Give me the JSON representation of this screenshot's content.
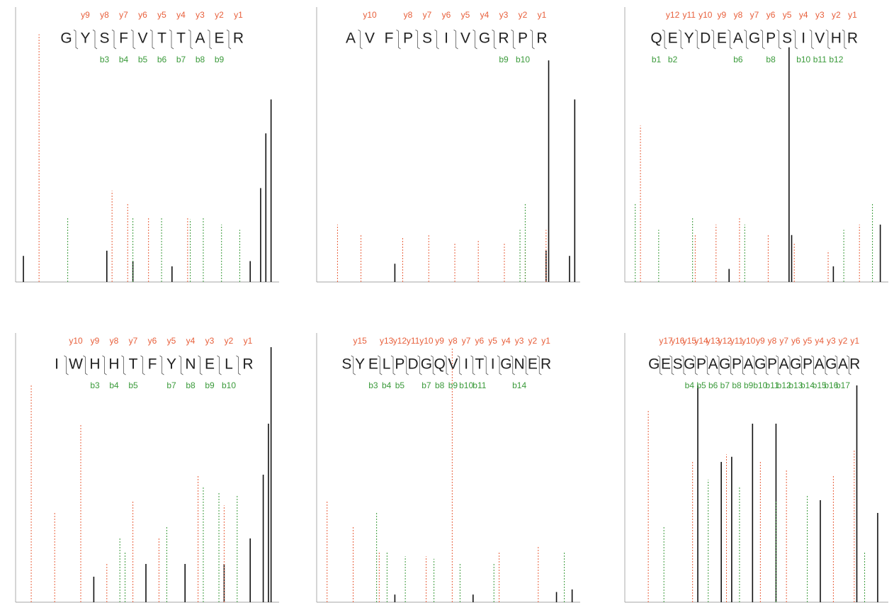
{
  "chart_data": [
    {
      "type": "spectrum",
      "peptide": [
        "G",
        "Y",
        "S",
        "F",
        "V",
        "T",
        "T",
        "A",
        "E",
        "R"
      ],
      "y_ions": [
        "y9",
        "y8",
        "y7",
        "y6",
        "y5",
        "y4",
        "y3",
        "y2",
        "y1"
      ],
      "b_ions": [
        "b3",
        "b4",
        "b5",
        "b6",
        "b7",
        "b8",
        "b9"
      ],
      "xlim": [
        0,
        100
      ],
      "ylim": [
        0,
        100
      ],
      "colors": {
        "y": "#e8603c",
        "b": "#3a9a3a",
        "other": "#111111"
      },
      "y_peaks": {
        "x": [
          9,
          37,
          43,
          51,
          66
        ],
        "values": [
          95,
          35,
          30,
          25,
          25
        ]
      },
      "b_peaks": {
        "x": [
          20,
          45,
          56,
          67,
          72,
          79,
          86
        ],
        "values": [
          25,
          25,
          25,
          24,
          25,
          22,
          20
        ]
      },
      "other_peaks": {
        "x": [
          3,
          35,
          45,
          60,
          90,
          94,
          96,
          98
        ],
        "values": [
          10,
          12,
          8,
          6,
          8,
          36,
          57,
          70
        ]
      }
    },
    {
      "type": "spectrum",
      "peptide": [
        "A",
        "V",
        "F",
        "P",
        "S",
        "I",
        "V",
        "G",
        "R",
        "P",
        "R"
      ],
      "y_ions": [
        "y10",
        "y8",
        "y7",
        "y6",
        "y5",
        "y4",
        "y3",
        "y2",
        "y1"
      ],
      "b_ions": [
        "b9",
        "b10"
      ],
      "xlim": [
        0,
        100
      ],
      "ylim": [
        0,
        100
      ],
      "colors": {
        "y": "#e8603c",
        "b": "#3a9a3a",
        "other": "#111111"
      },
      "y_peaks": {
        "x": [
          8,
          17,
          33,
          43,
          53,
          62,
          72,
          80,
          88
        ],
        "values": [
          22,
          18,
          17,
          18,
          15,
          16,
          15,
          14,
          20
        ]
      },
      "b_peaks": {
        "x": [
          78,
          80
        ],
        "values": [
          20,
          30
        ]
      },
      "other_peaks": {
        "x": [
          30,
          88,
          89,
          97,
          99
        ],
        "values": [
          7,
          12,
          85,
          10,
          70
        ]
      }
    },
    {
      "type": "spectrum",
      "peptide": [
        "Q",
        "E",
        "Y",
        "D",
        "E",
        "A",
        "G",
        "P",
        "S",
        "I",
        "V",
        "H",
        "R"
      ],
      "y_ions": [
        "y12",
        "y11",
        "y10",
        "y9",
        "y8",
        "y7",
        "y6",
        "y5",
        "y4",
        "y3",
        "y2",
        "y1"
      ],
      "b_ions": [
        "b1",
        "b2",
        "b6",
        "b8",
        "b10",
        "b11",
        "b12"
      ],
      "xlim": [
        0,
        100
      ],
      "ylim": [
        0,
        100
      ],
      "colors": {
        "y": "#e8603c",
        "b": "#3a9a3a",
        "other": "#111111"
      },
      "y_peaks": {
        "x": [
          6,
          27,
          35,
          44,
          55,
          65,
          78,
          90
        ],
        "values": [
          60,
          18,
          22,
          25,
          18,
          15,
          12,
          22
        ]
      },
      "b_peaks": {
        "x": [
          4,
          13,
          26,
          46,
          84,
          95
        ],
        "values": [
          30,
          20,
          25,
          22,
          20,
          30
        ]
      },
      "other_peaks": {
        "x": [
          40,
          63,
          64,
          80,
          98
        ],
        "values": [
          5,
          90,
          18,
          6,
          22
        ]
      }
    },
    {
      "type": "spectrum",
      "peptide": [
        "I",
        "W",
        "H",
        "H",
        "T",
        "F",
        "Y",
        "N",
        "E",
        "L",
        "R"
      ],
      "y_ions": [
        "y10",
        "y9",
        "y8",
        "y7",
        "y6",
        "y5",
        "y4",
        "y3",
        "y2",
        "y1"
      ],
      "b_ions": [
        "b3",
        "b4",
        "b5",
        "b7",
        "b8",
        "b9",
        "b10"
      ],
      "xlim": [
        0,
        100
      ],
      "ylim": [
        0,
        100
      ],
      "colors": {
        "y": "#e8603c",
        "b": "#3a9a3a",
        "other": "#111111"
      },
      "y_peaks": {
        "x": [
          6,
          15,
          25,
          35,
          45,
          55,
          70,
          80
        ],
        "values": [
          85,
          35,
          70,
          15,
          40,
          25,
          50,
          38
        ]
      },
      "b_peaks": {
        "x": [
          40,
          42,
          58,
          72,
          78,
          85
        ],
        "values": [
          25,
          20,
          30,
          45,
          43,
          42
        ]
      },
      "other_peaks": {
        "x": [
          30,
          50,
          65,
          80,
          90,
          95,
          97,
          98
        ],
        "values": [
          10,
          15,
          15,
          15,
          25,
          50,
          70,
          100
        ]
      }
    },
    {
      "type": "spectrum",
      "peptide": [
        "S",
        "Y",
        "E",
        "L",
        "P",
        "D",
        "G",
        "Q",
        "V",
        "I",
        "T",
        "I",
        "G",
        "N",
        "E",
        "R"
      ],
      "y_ions": [
        "y15",
        "y13",
        "y12",
        "y11",
        "y10",
        "y9",
        "y8",
        "y7",
        "y6",
        "y5",
        "y4",
        "y3",
        "y2",
        "y1"
      ],
      "b_ions": [
        "b3",
        "b4",
        "b5",
        "b7",
        "b8",
        "b9",
        "b10",
        "b11",
        "b14"
      ],
      "xlim": [
        0,
        100
      ],
      "ylim": [
        0,
        100
      ],
      "colors": {
        "y": "#e8603c",
        "b": "#3a9a3a",
        "other": "#111111"
      },
      "y_peaks": {
        "x": [
          4,
          14,
          24,
          42,
          52,
          70,
          85
        ],
        "values": [
          40,
          30,
          20,
          18,
          100,
          20,
          22
        ]
      },
      "b_peaks": {
        "x": [
          23,
          27,
          34,
          45,
          55,
          68,
          95
        ],
        "values": [
          35,
          20,
          18,
          17,
          15,
          15,
          20
        ]
      },
      "other_peaks": {
        "x": [
          30,
          60,
          92,
          98
        ],
        "values": [
          3,
          3,
          4,
          5
        ]
      }
    },
    {
      "type": "spectrum",
      "peptide": [
        "G",
        "E",
        "S",
        "G",
        "P",
        "A",
        "G",
        "P",
        "A",
        "G",
        "P",
        "A",
        "G",
        "P",
        "A",
        "G",
        "A",
        "R"
      ],
      "y_ions": [
        "y17",
        "y16",
        "y15",
        "y14",
        "y13",
        "y12",
        "y11",
        "y10",
        "y9",
        "y8",
        "y7",
        "y6",
        "y5",
        "y4",
        "y3",
        "y2",
        "y1"
      ],
      "b_ions": [
        "b4",
        "b5",
        "b6",
        "b7",
        "b8",
        "b9",
        "b10",
        "b11",
        "b12",
        "b13",
        "b14",
        "b15",
        "b16",
        "b17"
      ],
      "xlim": [
        0,
        100
      ],
      "ylim": [
        0,
        100
      ],
      "colors": {
        "y": "#e8603c",
        "b": "#3a9a3a",
        "other": "#111111"
      },
      "y_peaks": {
        "x": [
          9,
          26,
          39,
          52,
          62,
          80,
          88
        ],
        "values": [
          75,
          55,
          58,
          55,
          52,
          50,
          60
        ]
      },
      "b_peaks": {
        "x": [
          15,
          32,
          44,
          58,
          70,
          92
        ],
        "values": [
          30,
          48,
          45,
          40,
          42,
          20
        ]
      },
      "other_peaks": {
        "x": [
          28,
          37,
          41,
          49,
          58,
          75,
          89,
          97
        ],
        "values": [
          85,
          55,
          57,
          70,
          70,
          40,
          85,
          35
        ]
      }
    }
  ]
}
